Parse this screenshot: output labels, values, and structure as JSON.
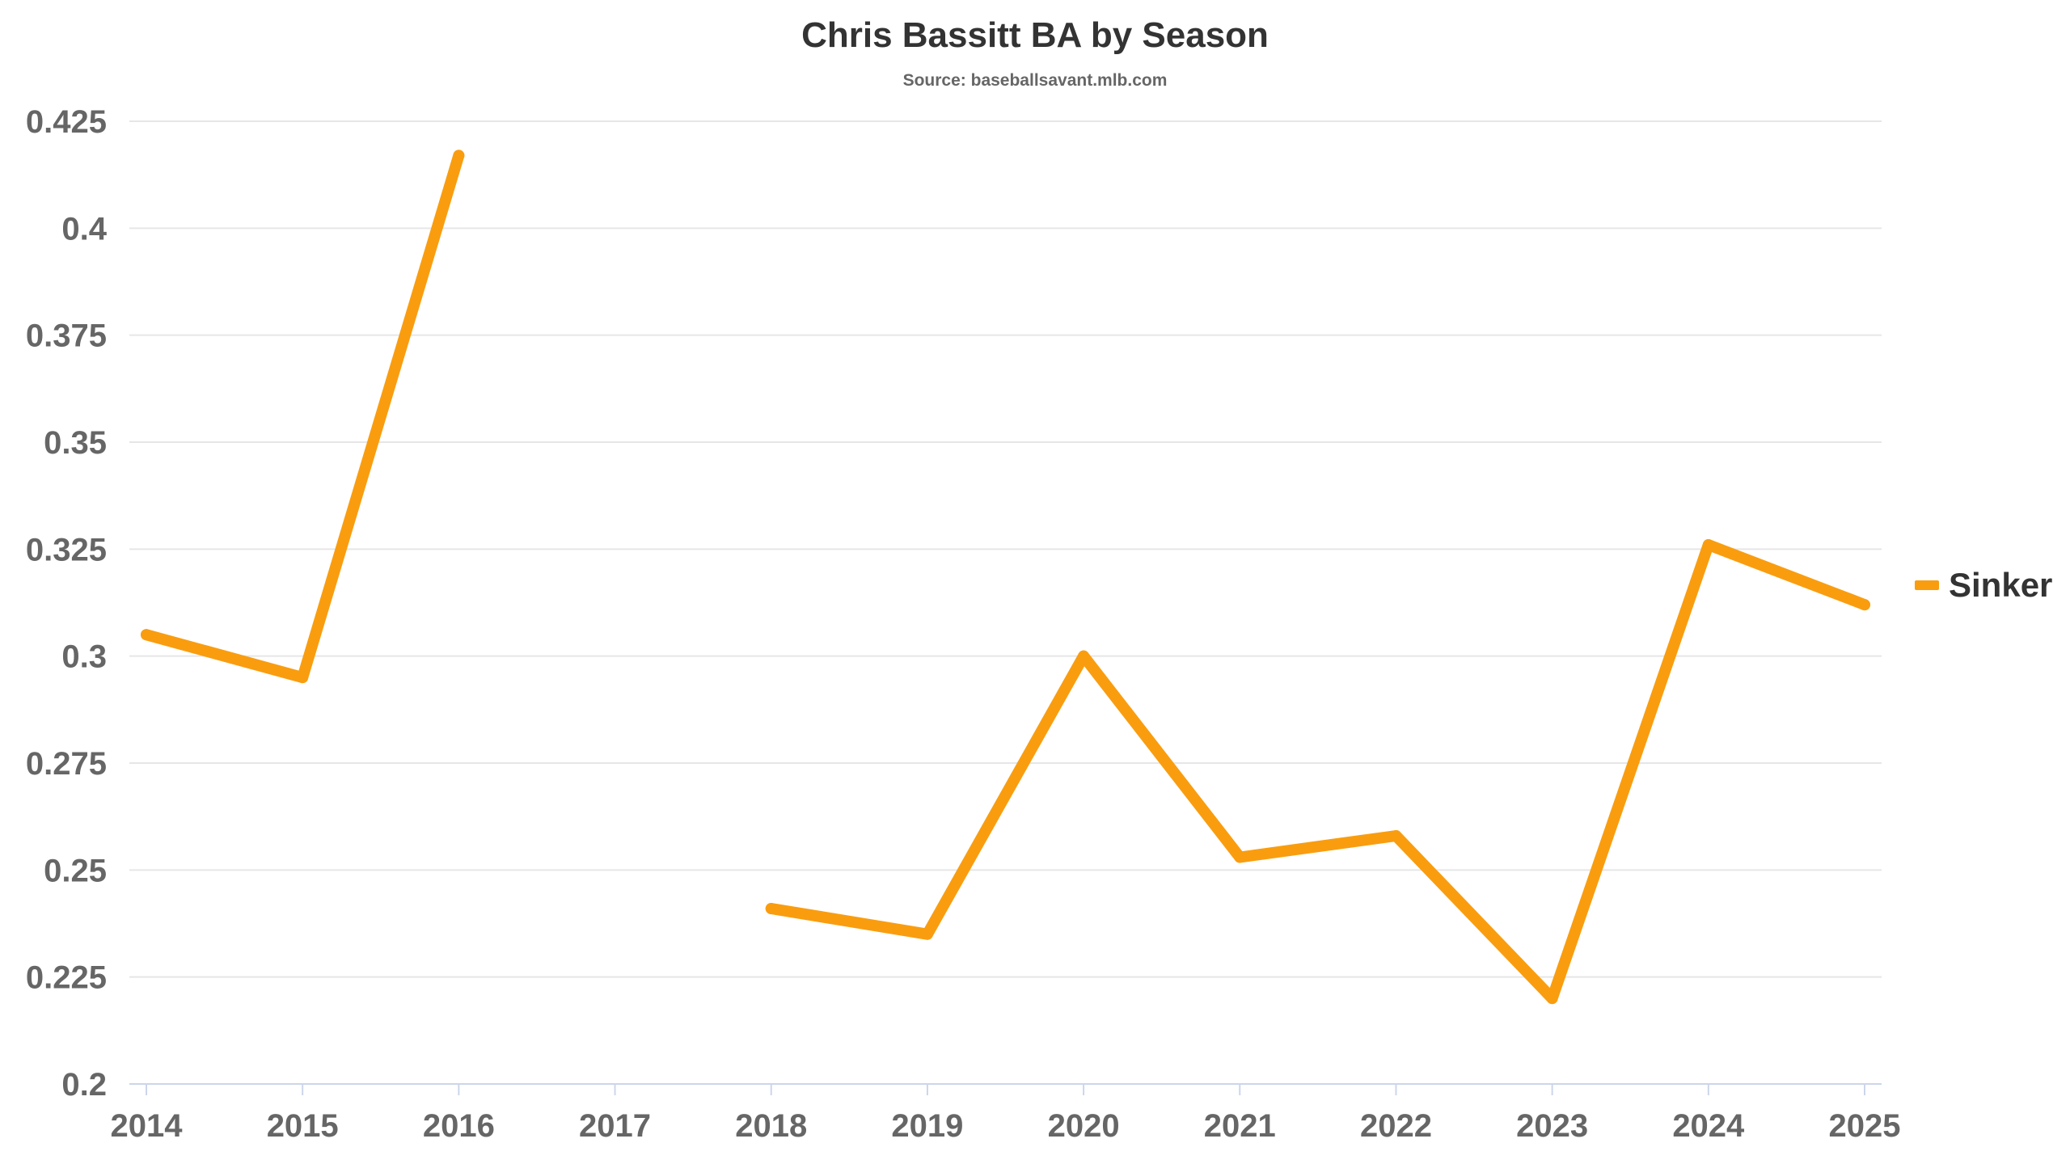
{
  "chart_data": {
    "type": "line",
    "title": "Chris Bassitt BA by Season",
    "subtitle": "Source: baseballsavant.mlb.com",
    "xlabel": "",
    "ylabel": "",
    "categories": [
      "2014",
      "2015",
      "2016",
      "2017",
      "2018",
      "2019",
      "2020",
      "2021",
      "2022",
      "2023",
      "2024",
      "2025"
    ],
    "ylim": [
      0.2,
      0.425
    ],
    "yticks": [
      "0.2",
      "0.225",
      "0.25",
      "0.275",
      "0.3",
      "0.325",
      "0.35",
      "0.375",
      "0.4",
      "0.425"
    ],
    "grid": true,
    "legend_position": "right",
    "series": [
      {
        "name": "Sinker",
        "color": "#f99d0f",
        "values": [
          0.305,
          0.295,
          0.417,
          null,
          0.241,
          0.235,
          0.3,
          0.253,
          0.258,
          0.22,
          0.326,
          0.312
        ]
      }
    ]
  }
}
